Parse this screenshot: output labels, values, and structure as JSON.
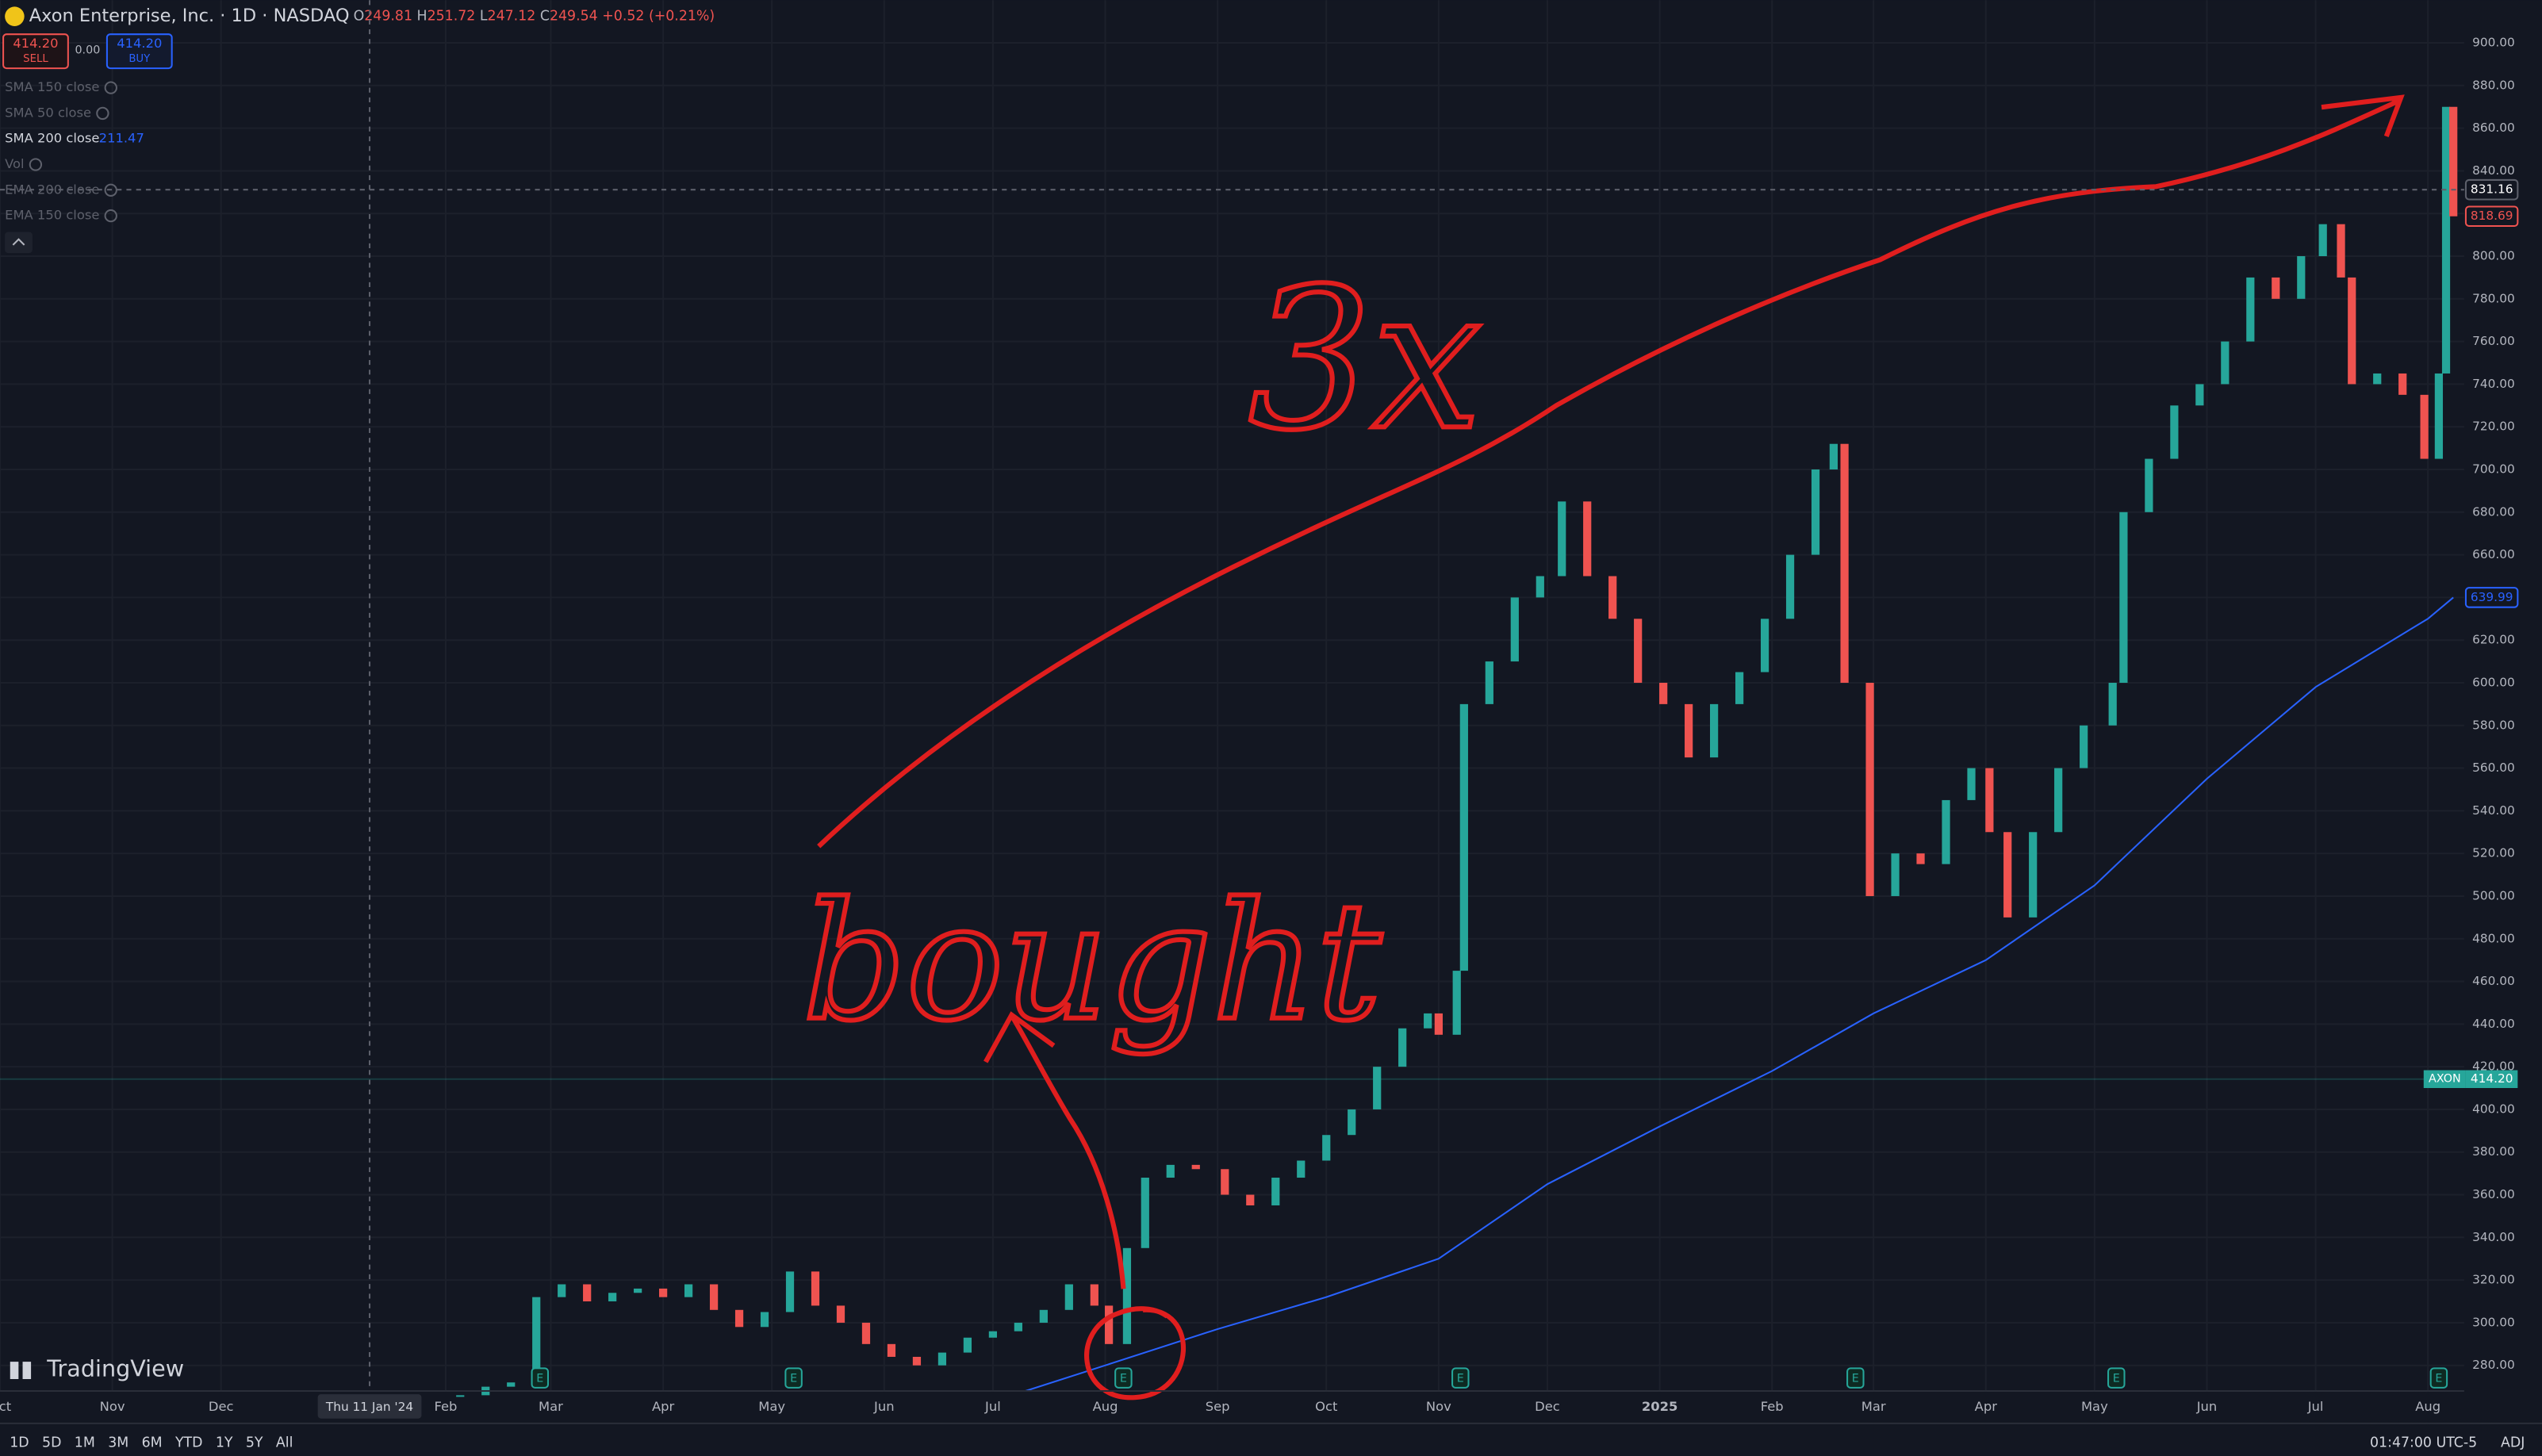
{
  "header": {
    "symbol": "Axon Enterprise, Inc. · 1D · NASDAQ",
    "ohlc": [
      {
        "key": "O",
        "value": "249.81"
      },
      {
        "key": "H",
        "value": "251.72"
      },
      {
        "key": "L",
        "value": "247.12"
      },
      {
        "key": "C",
        "value": "249.54"
      }
    ],
    "change": "+0.52 (+0.21%)",
    "sell": {
      "price": "414.20",
      "label": "SELL"
    },
    "spread": "0.00",
    "buy": {
      "price": "414.20",
      "label": "BUY"
    },
    "indicators": [
      {
        "name": "SMA 150 close"
      },
      {
        "name": "SMA 50 close"
      },
      {
        "name": "SMA 200 close",
        "value": "211.47"
      },
      {
        "name": "Vol"
      },
      {
        "name": "EMA 200 close"
      },
      {
        "name": "EMA 150 close"
      }
    ],
    "logo": "TradingView"
  },
  "toolbar": {
    "ranges": [
      "1D",
      "5D",
      "1M",
      "3M",
      "6M",
      "YTD",
      "1Y",
      "5Y",
      "All"
    ],
    "clock": "01:47:00 UTC-5",
    "adj": "ADJ"
  },
  "chart_data": {
    "type": "candlestick",
    "annotations": [
      "3x",
      "bought"
    ],
    "xlim": [
      "2023-10-01",
      "2025-08-11"
    ],
    "xticks": [
      {
        "value": "2023-10-01",
        "label": "Oct"
      },
      {
        "value": "2023-11-01",
        "label": "Nov"
      },
      {
        "value": "2023-12-01",
        "label": "Dec"
      },
      {
        "value": "2024-02-01",
        "label": "Feb"
      },
      {
        "value": "2024-03-01",
        "label": "Mar"
      },
      {
        "value": "2024-04-01",
        "label": "Apr"
      },
      {
        "value": "2024-05-01",
        "label": "May"
      },
      {
        "value": "2024-06-01",
        "label": "Jun"
      },
      {
        "value": "2024-07-01",
        "label": "Jul"
      },
      {
        "value": "2024-08-01",
        "label": "Aug"
      },
      {
        "value": "2024-09-01",
        "label": "Sep"
      },
      {
        "value": "2024-10-01",
        "label": "Oct"
      },
      {
        "value": "2024-11-01",
        "label": "Nov"
      },
      {
        "value": "2024-12-01",
        "label": "Dec"
      },
      {
        "value": "2025-01-01",
        "label": "2025"
      },
      {
        "value": "2025-02-01",
        "label": "Feb"
      },
      {
        "value": "2025-03-01",
        "label": "Mar"
      },
      {
        "value": "2025-04-01",
        "label": "Apr"
      },
      {
        "value": "2025-05-01",
        "label": "May"
      },
      {
        "value": "2025-06-01",
        "label": "Jun"
      },
      {
        "value": "2025-07-01",
        "label": "Jul"
      },
      {
        "value": "2025-08-01",
        "label": "Aug"
      }
    ],
    "crosshair": {
      "x": {
        "value": "2024-01-11",
        "label": "Thu 11 Jan '24"
      },
      "y": 831.16
    },
    "ylim": [
      268,
      920
    ],
    "yticks": [
      {
        "value": 280,
        "label": "280.00"
      },
      {
        "value": 300,
        "label": "300.00"
      },
      {
        "value": 320,
        "label": "320.00"
      },
      {
        "value": 340,
        "label": "340.00"
      },
      {
        "value": 360,
        "label": "360.00"
      },
      {
        "value": 380,
        "label": "380.00"
      },
      {
        "value": 400,
        "label": "400.00"
      },
      {
        "value": 420,
        "label": "420.00"
      },
      {
        "value": 440,
        "label": "440.00"
      },
      {
        "value": 460,
        "label": "460.00"
      },
      {
        "value": 480,
        "label": "480.00"
      },
      {
        "value": 500,
        "label": "500.00"
      },
      {
        "value": 520,
        "label": "520.00"
      },
      {
        "value": 540,
        "label": "540.00"
      },
      {
        "value": 560,
        "label": "560.00"
      },
      {
        "value": 580,
        "label": "580.00"
      },
      {
        "value": 600,
        "label": "600.00"
      },
      {
        "value": 620,
        "label": "620.00"
      },
      {
        "value": 640,
        "label": "640.00"
      },
      {
        "value": 660,
        "label": "660.00"
      },
      {
        "value": 680,
        "label": "680.00"
      },
      {
        "value": 700,
        "label": "700.00"
      },
      {
        "value": 720,
        "label": "720.00"
      },
      {
        "value": 740,
        "label": "740.00"
      },
      {
        "value": 760,
        "label": "760.00"
      },
      {
        "value": 780,
        "label": "780.00"
      },
      {
        "value": 800,
        "label": "800.00"
      },
      {
        "value": 820,
        "label": "820.00"
      },
      {
        "value": 840,
        "label": "840.00"
      },
      {
        "value": 860,
        "label": "860.00"
      },
      {
        "value": 880,
        "label": "880.00"
      },
      {
        "value": 900,
        "label": "900.00"
      }
    ],
    "grid": true,
    "series": [
      {
        "name": "AXON",
        "style": "candles",
        "color": "#26a69a",
        "color_down": "#ef5350",
        "x": [
          "2024-02-05",
          "2024-02-12",
          "2024-02-19",
          "2024-02-26",
          "2024-03-04",
          "2024-03-11",
          "2024-03-18",
          "2024-03-25",
          "2024-04-01",
          "2024-04-08",
          "2024-04-15",
          "2024-04-22",
          "2024-04-29",
          "2024-05-06",
          "2024-05-13",
          "2024-05-20",
          "2024-05-27",
          "2024-06-03",
          "2024-06-10",
          "2024-06-17",
          "2024-06-24",
          "2024-07-01",
          "2024-07-08",
          "2024-07-15",
          "2024-07-22",
          "2024-07-29",
          "2024-08-02",
          "2024-08-07",
          "2024-08-12",
          "2024-08-19",
          "2024-08-26",
          "2024-09-03",
          "2024-09-10",
          "2024-09-17",
          "2024-09-24",
          "2024-10-01",
          "2024-10-08",
          "2024-10-15",
          "2024-10-22",
          "2024-10-29",
          "2024-11-01",
          "2024-11-06",
          "2024-11-08",
          "2024-11-15",
          "2024-11-22",
          "2024-11-29",
          "2024-12-05",
          "2024-12-12",
          "2024-12-19",
          "2024-12-26",
          "2025-01-02",
          "2025-01-09",
          "2025-01-16",
          "2025-01-23",
          "2025-01-30",
          "2025-02-06",
          "2025-02-13",
          "2025-02-18",
          "2025-02-21",
          "2025-02-28",
          "2025-03-07",
          "2025-03-14",
          "2025-03-21",
          "2025-03-28",
          "2025-04-02",
          "2025-04-07",
          "2025-04-14",
          "2025-04-21",
          "2025-04-28",
          "2025-05-06",
          "2025-05-09",
          "2025-05-16",
          "2025-05-23",
          "2025-05-30",
          "2025-06-06",
          "2025-06-13",
          "2025-06-20",
          "2025-06-27",
          "2025-07-03",
          "2025-07-08",
          "2025-07-11",
          "2025-07-18",
          "2025-07-25",
          "2025-07-31",
          "2025-08-04",
          "2025-08-06",
          "2025-08-08"
        ],
        "values": [
          266,
          270,
          272,
          312,
          318,
          310,
          314,
          316,
          312,
          318,
          306,
          298,
          305,
          324,
          308,
          300,
          290,
          284,
          280,
          286,
          293,
          296,
          300,
          306,
          318,
          308,
          290,
          335,
          368,
          374,
          372,
          360,
          355,
          368,
          376,
          388,
          400,
          420,
          438,
          445,
          435,
          465,
          590,
          610,
          640,
          650,
          685,
          650,
          630,
          600,
          590,
          565,
          590,
          605,
          630,
          660,
          700,
          712,
          600,
          500,
          520,
          515,
          545,
          560,
          530,
          490,
          530,
          560,
          580,
          600,
          680,
          705,
          730,
          740,
          760,
          790,
          780,
          800,
          815,
          790,
          740,
          745,
          735,
          705,
          745,
          870,
          818.69
        ]
      },
      {
        "name": "SMA 200 close",
        "style": "line",
        "color": "#2962ff",
        "x": [
          "2024-07-10",
          "2024-08-01",
          "2024-09-01",
          "2024-10-01",
          "2024-11-01",
          "2024-12-01",
          "2025-01-01",
          "2025-02-01",
          "2025-03-01",
          "2025-04-01",
          "2025-05-01",
          "2025-06-01",
          "2025-07-01",
          "2025-08-01",
          "2025-08-08"
        ],
        "values": [
          268,
          280,
          297,
          312,
          330,
          365,
          392,
          418,
          445,
          470,
          505,
          555,
          598,
          630,
          639.99
        ]
      }
    ],
    "last_price": 818.69,
    "ref_line": {
      "name": "AXON",
      "value": 414.2,
      "label": "414.20"
    },
    "earnings": {
      "label": "E",
      "x": [
        "2024-02-27",
        "2024-05-07",
        "2024-08-06",
        "2024-11-07",
        "2025-02-24",
        "2025-05-07",
        "2025-08-04"
      ]
    }
  }
}
